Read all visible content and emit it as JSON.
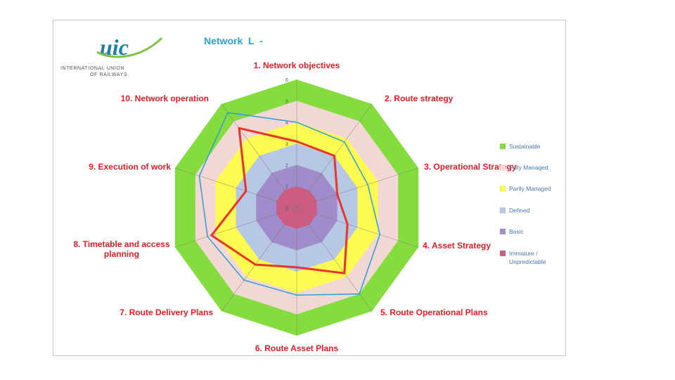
{
  "header": {
    "title": "Network  L  -",
    "logo": {
      "mark": "uic",
      "line1": "INTERNATIONAL UNION",
      "line2": "OF RAILWAYS",
      "color": "#1b7fa6",
      "swoosh_color": "#7ec244"
    }
  },
  "chart_data": {
    "type": "radar",
    "categories": [
      "1. Network objectives",
      "2. Route strategy",
      "3. Operational Strategy",
      "4. Asset Strategy",
      "5. Route Operational Plans",
      "6. Route Asset Plans",
      "7. Route Delivery Plans",
      "8. Timetable and access planning",
      "9. Execution of work",
      "10. Network operation"
    ],
    "ticks": [
      "0",
      "1",
      "2",
      "3",
      "4",
      "5",
      "6"
    ],
    "rmin": 0,
    "rmax": 6,
    "bands": [
      {
        "name": "Sustainable",
        "from": 5,
        "to": 6,
        "color": "#84dc3e"
      },
      {
        "name": "Fully Managed",
        "from": 4,
        "to": 5,
        "color": "#f2d8d4"
      },
      {
        "name": "Partly Managed",
        "from": 3,
        "to": 4,
        "color": "#fdfb52"
      },
      {
        "name": "Defined",
        "from": 2,
        "to": 3,
        "color": "#b6c8e4"
      },
      {
        "name": "Basic",
        "from": 1,
        "to": 2,
        "color": "#a08ccb"
      },
      {
        "name": "Immature / Unpredictable",
        "from": 0,
        "to": 1,
        "color": "#cd5c80"
      }
    ],
    "series": [
      {
        "values": [
          3.1,
          3.0,
          2.0,
          2.5,
          3.8,
          2.8,
          3.3,
          4.2,
          2.5,
          4.6
        ],
        "color": "#e8342a",
        "width": 3
      },
      {
        "values": [
          4.0,
          3.8,
          3.5,
          4.1,
          5.0,
          4.1,
          4.2,
          4.4,
          4.8,
          5.5
        ],
        "color": "#2d9ed4",
        "width": 1.5
      }
    ],
    "legend_position": "right"
  }
}
